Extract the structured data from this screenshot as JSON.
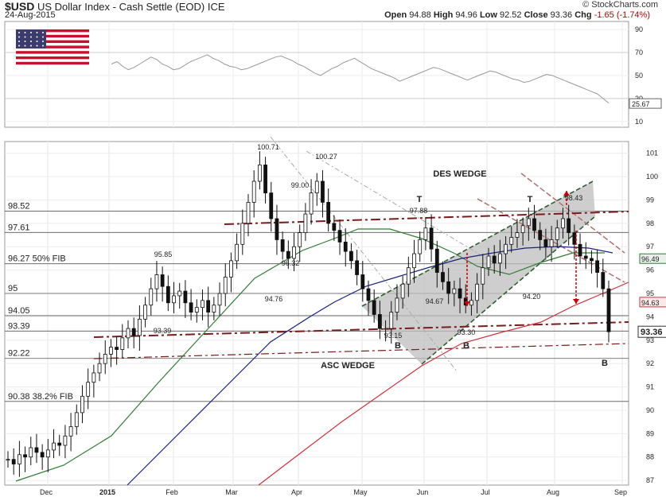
{
  "header": {
    "symbol": "$USD",
    "name": "US Dollar Index - Cash Settle (EOD)",
    "exchange": "ICE",
    "date": "24-Aug-2015",
    "brand": "© StockCharts.com",
    "open_label": "Open",
    "open": "94.88",
    "high_label": "High",
    "high": "94.96",
    "low_label": "Low",
    "low": "92.52",
    "close_label": "Close",
    "close": "93.36",
    "chg_label": "Chg",
    "chg": "-1.65 (-1.74%)"
  },
  "colors": {
    "brand_red": "#7a1c1c",
    "asc_green": "#2f5f2f",
    "ma_green": "#2e7d32",
    "ma_blue": "#1a237e",
    "ma_red": "#d0303a",
    "arrow_red": "#cc0000"
  },
  "flag_icon": "us-flag-icon",
  "chart_data": [
    {
      "type": "line",
      "panel": "indicator",
      "ylim": [
        5,
        97
      ],
      "ticks": [
        10,
        30,
        50,
        70,
        90
      ],
      "current_value": "25.67",
      "values": [
        60,
        62,
        58,
        55,
        57,
        60,
        63,
        66,
        64,
        60,
        58,
        55,
        56,
        59,
        62,
        64,
        66,
        68,
        65,
        63,
        60,
        58,
        57,
        55,
        56,
        58,
        60,
        62,
        64,
        66,
        67,
        65,
        63,
        60,
        58,
        55,
        52,
        50,
        53,
        56,
        58,
        61,
        63,
        65,
        62,
        59,
        56,
        54,
        52,
        50,
        48,
        45,
        47,
        49,
        51,
        53,
        55,
        57,
        56,
        54,
        52,
        50,
        48,
        46,
        48,
        50,
        52,
        54,
        53,
        51,
        49,
        47,
        46,
        44,
        45,
        47,
        49,
        51,
        50,
        48,
        46,
        44,
        42,
        40,
        38,
        36,
        34,
        30,
        26
      ]
    },
    {
      "type": "line",
      "panel": "price",
      "ylim": [
        86.8,
        101.5
      ],
      "yticks": [
        87,
        88,
        89,
        90,
        91,
        92,
        93,
        94,
        95,
        96,
        97,
        98,
        99,
        100,
        101
      ],
      "xticks": [
        "Dec",
        "2015",
        "Feb",
        "Mar",
        "Apr",
        "May",
        "Jun",
        "Jul",
        "Aug",
        "Sep"
      ],
      "current_price": "93.36",
      "ma_tags": [
        "96.49",
        "94.63"
      ],
      "close_series": [
        87.9,
        87.7,
        88.1,
        88.0,
        88.4,
        88.2,
        88.0,
        88.3,
        88.6,
        88.5,
        88.9,
        89.3,
        89.9,
        90.6,
        91.2,
        91.6,
        92.0,
        92.4,
        92.7,
        92.6,
        93.1,
        93.5,
        93.2,
        93.9,
        94.5,
        95.2,
        95.8,
        95.3,
        94.6,
        94.9,
        95.1,
        94.6,
        94.2,
        94.4,
        94.7,
        94.2,
        94.5,
        95.0,
        95.7,
        96.4,
        97.1,
        98.0,
        98.9,
        99.8,
        100.5,
        99.3,
        98.2,
        97.3,
        96.8,
        96.5,
        97.0,
        97.6,
        98.4,
        99.3,
        99.8,
        98.9,
        98.0,
        97.7,
        97.2,
        96.8,
        96.4,
        95.8,
        95.2,
        94.7,
        94.1,
        93.5,
        93.5,
        94.2,
        94.8,
        95.4,
        96.1,
        96.7,
        97.3,
        97.8,
        96.9,
        95.9,
        95.5,
        95.0,
        95.2,
        94.8,
        94.5,
        94.7,
        95.4,
        96.1,
        96.6,
        96.3,
        96.7,
        97.1,
        97.4,
        97.6,
        97.9,
        98.2,
        97.7,
        97.3,
        97.0,
        97.3,
        97.8,
        98.2,
        97.6,
        97.1,
        96.6,
        96.5,
        96.4,
        95.9,
        95.2,
        93.36
      ],
      "horizontal_levels": [
        {
          "value": 98.52,
          "label": "98.52"
        },
        {
          "value": 97.61,
          "label": "97.61"
        },
        {
          "value": 96.27,
          "label": "96.27  50% FIB"
        },
        {
          "value": 95.0,
          "label": "95"
        },
        {
          "value": 94.05,
          "label": "94.05"
        },
        {
          "value": 93.39,
          "label": "93.39"
        },
        {
          "value": 92.22,
          "label": "92.22"
        },
        {
          "value": 90.38,
          "label": "90.38  38.2% FIB"
        }
      ],
      "annotations": [
        "100.71",
        "100.27",
        "99.00",
        "95.85",
        "96.32",
        "94.76",
        "93.39",
        "97.88",
        "94.67",
        "93.15",
        "93.30",
        "98.43",
        "94.20"
      ],
      "pattern_labels": {
        "des_wedge": "DES WEDGE",
        "asc_wedge": "ASC WEDGE",
        "top": "T",
        "bottom": "B"
      }
    }
  ]
}
